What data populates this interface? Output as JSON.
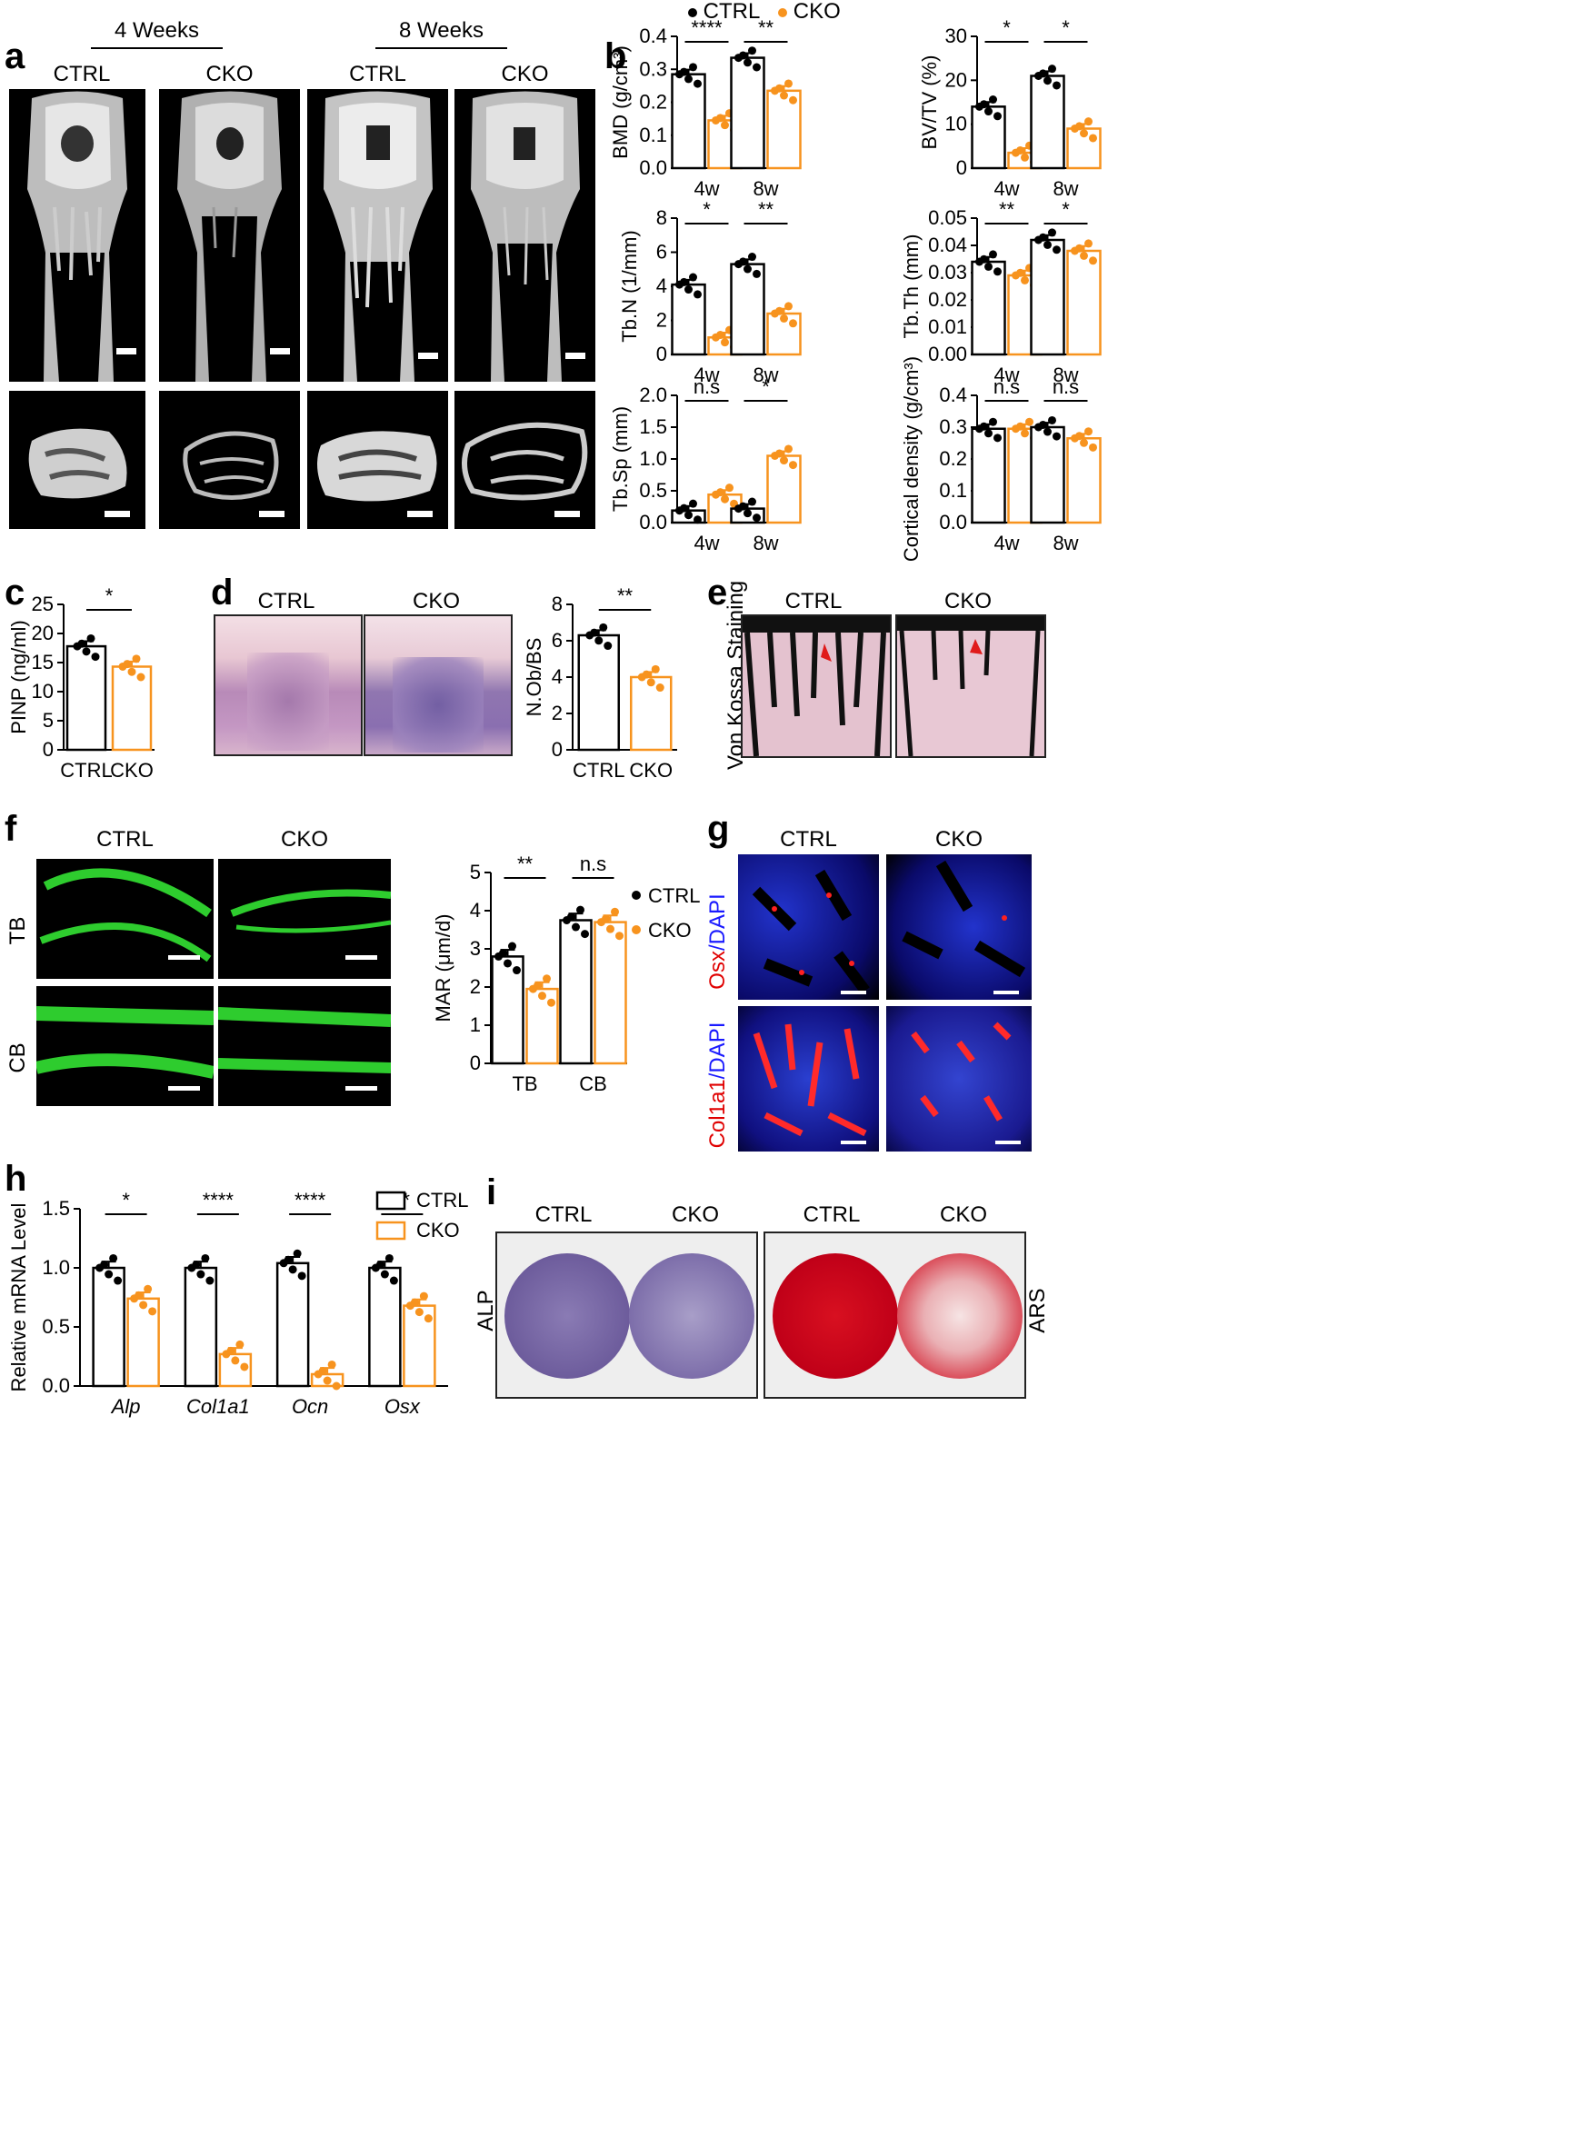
{
  "panel_labels": {
    "a": "a",
    "b": "b",
    "c": "c",
    "d": "d",
    "e": "e",
    "f": "f",
    "g": "g",
    "h": "h",
    "i": "i"
  },
  "panel_a": {
    "timepoint_1": "4 Weeks",
    "timepoint_2": "8 Weeks",
    "groups": [
      "CTRL",
      "CKO",
      "CTRL",
      "CKO"
    ]
  },
  "legend_b": {
    "ctrl": "CTRL",
    "cko": "CKO"
  },
  "colors": {
    "ctrl": "#000000",
    "cko": "#F7931E",
    "bg": "#ffffff"
  },
  "panel_d": {
    "ctrl": "CTRL",
    "cko": "CKO"
  },
  "panel_e": {
    "ctrl": "CTRL",
    "cko": "CKO",
    "side_label": "Von Kossa Staining"
  },
  "panel_f": {
    "ctrl": "CTRL",
    "cko": "CKO",
    "row1": "TB",
    "row2": "CB"
  },
  "panel_g": {
    "ctrl": "CTRL",
    "cko": "CKO",
    "row1_a": "Osx",
    "row1_b": "/DAPI",
    "row2_a": "Col1a1",
    "row2_b": "/DAPI"
  },
  "panel_i": {
    "ctrl1": "CTRL",
    "cko1": "CKO",
    "ctrl2": "CTRL",
    "cko2": "CKO",
    "left_label": "ALP",
    "right_label": "ARS"
  },
  "chart_data": [
    {
      "id": "b1",
      "type": "bar",
      "categories": [
        "4w",
        "8w"
      ],
      "ylabel": "BMD (g/cm³)",
      "ylim": [
        0,
        0.4
      ],
      "yticks": [
        "0.0",
        "0.1",
        "0.2",
        "0.3",
        "0.4"
      ],
      "series": [
        {
          "name": "CTRL",
          "values": [
            0.285,
            0.335
          ]
        },
        {
          "name": "CKO",
          "values": [
            0.145,
            0.235
          ]
        }
      ],
      "sig": [
        "****",
        "**"
      ]
    },
    {
      "id": "b2",
      "type": "bar",
      "categories": [
        "4w",
        "8w"
      ],
      "ylabel": "BV/TV (%)",
      "ylim": [
        0,
        30
      ],
      "yticks": [
        "0",
        "10",
        "20",
        "30"
      ],
      "series": [
        {
          "name": "CTRL",
          "values": [
            14,
            21
          ]
        },
        {
          "name": "CKO",
          "values": [
            3.5,
            9
          ]
        }
      ],
      "sig": [
        "*",
        "*"
      ]
    },
    {
      "id": "b3",
      "type": "bar",
      "categories": [
        "4w",
        "8w"
      ],
      "ylabel": "Tb.N (1/mm)",
      "ylim": [
        0,
        8
      ],
      "yticks": [
        "0",
        "2",
        "4",
        "6",
        "8"
      ],
      "series": [
        {
          "name": "CTRL",
          "values": [
            4.1,
            5.3
          ]
        },
        {
          "name": "CKO",
          "values": [
            1.0,
            2.4
          ]
        }
      ],
      "sig": [
        "*",
        "**"
      ]
    },
    {
      "id": "b4",
      "type": "bar",
      "categories": [
        "4w",
        "8w"
      ],
      "ylabel": "Tb.Th (mm)",
      "ylim": [
        0,
        0.05
      ],
      "yticks": [
        "0.00",
        "0.01",
        "0.02",
        "0.03",
        "0.04",
        "0.05"
      ],
      "series": [
        {
          "name": "CTRL",
          "values": [
            0.034,
            0.042
          ]
        },
        {
          "name": "CKO",
          "values": [
            0.029,
            0.038
          ]
        }
      ],
      "sig": [
        "**",
        "*"
      ]
    },
    {
      "id": "b5",
      "type": "bar",
      "categories": [
        "4w",
        "8w"
      ],
      "ylabel": "Tb.Sp (mm)",
      "ylim": [
        0,
        2.0
      ],
      "yticks": [
        "0.0",
        "0.5",
        "1.0",
        "1.5",
        "2.0"
      ],
      "series": [
        {
          "name": "CTRL",
          "values": [
            0.19,
            0.22
          ]
        },
        {
          "name": "CKO",
          "values": [
            0.44,
            1.05
          ]
        }
      ],
      "sig": [
        "n.s",
        "*"
      ]
    },
    {
      "id": "b6",
      "type": "bar",
      "categories": [
        "4w",
        "8w"
      ],
      "ylabel": "Cortical density (g/cm³)",
      "ylim": [
        0,
        0.4
      ],
      "yticks": [
        "0.0",
        "0.1",
        "0.2",
        "0.3",
        "0.4"
      ],
      "series": [
        {
          "name": "CTRL",
          "values": [
            0.295,
            0.3
          ]
        },
        {
          "name": "CKO",
          "values": [
            0.295,
            0.265
          ]
        }
      ],
      "sig": [
        "n.s",
        "n.s"
      ]
    },
    {
      "id": "c",
      "type": "bar",
      "categories": [
        "CTRL",
        "CKO"
      ],
      "ylabel": "PINP (ng/ml)",
      "ylim": [
        0,
        25
      ],
      "yticks": [
        "0",
        "5",
        "10",
        "15",
        "20",
        "25"
      ],
      "series": [
        {
          "name": "value",
          "values": [
            17.8,
            14.3
          ]
        }
      ],
      "sig": [
        "*"
      ]
    },
    {
      "id": "d",
      "type": "bar",
      "categories": [
        "CTRL",
        "CKO"
      ],
      "ylabel": "N.Ob/BS",
      "ylim": [
        0,
        8
      ],
      "yticks": [
        "0",
        "2",
        "4",
        "6",
        "8"
      ],
      "series": [
        {
          "name": "value",
          "values": [
            6.3,
            4.0
          ]
        }
      ],
      "sig": [
        "**"
      ]
    },
    {
      "id": "f",
      "type": "bar",
      "categories": [
        "TB",
        "CB"
      ],
      "ylabel": "MAR (μm/d)",
      "ylim": [
        0,
        5
      ],
      "yticks": [
        "0",
        "1",
        "2",
        "3",
        "4",
        "5"
      ],
      "series": [
        {
          "name": "CTRL",
          "values": [
            2.8,
            3.75
          ]
        },
        {
          "name": "CKO",
          "values": [
            1.95,
            3.7
          ]
        }
      ],
      "sig": [
        "**",
        "n.s"
      ]
    },
    {
      "id": "h",
      "type": "bar",
      "categories": [
        "Alp",
        "Col1a1",
        "Ocn",
        "Osx"
      ],
      "ylabel": "Relative mRNA Level",
      "ylim": [
        0,
        1.5
      ],
      "yticks": [
        "0.0",
        "0.5",
        "1.0",
        "1.5"
      ],
      "series": [
        {
          "name": "CTRL",
          "values": [
            1.0,
            1.0,
            1.04,
            1.0
          ]
        },
        {
          "name": "CKO",
          "values": [
            0.74,
            0.27,
            0.1,
            0.68
          ]
        }
      ],
      "sig": [
        "*",
        "****",
        "****",
        "**"
      ]
    }
  ]
}
